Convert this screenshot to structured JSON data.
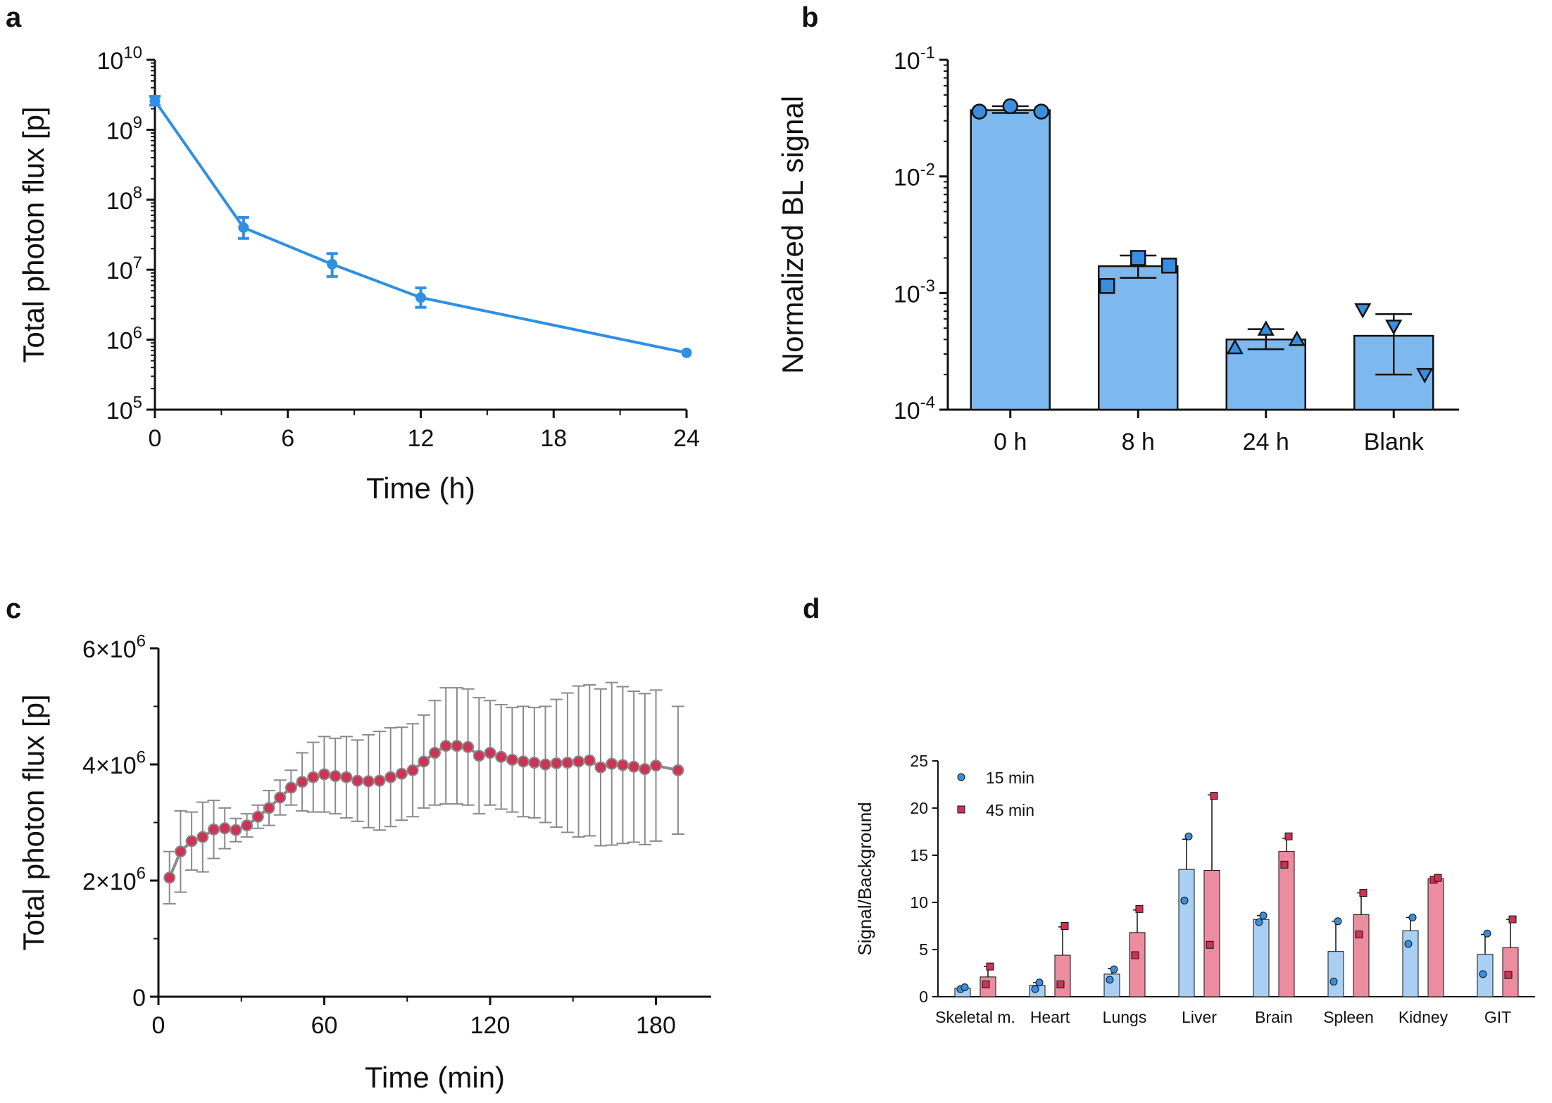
{
  "colors": {
    "blue_line": "#2f8fe3",
    "blue_bar": "#7db8ee",
    "blue_marker": "#3a8ee0",
    "red_marker": "#cc3355",
    "red_bar": "#ec8d9f",
    "light_blue_bar": "#a9d0f3",
    "gray": "#8a8a8a",
    "axis": "#111111"
  },
  "chart_data": [
    {
      "panel": "a",
      "type": "line",
      "title": "",
      "xlabel": "Time (h)",
      "ylabel": "Total photon flux [p]",
      "xlim": [
        0,
        24
      ],
      "x_ticks": [
        "0",
        "6",
        "12",
        "18",
        "24"
      ],
      "y_scale": "log",
      "y_ticks": [
        {
          "base": "10",
          "exp": "5"
        },
        {
          "base": "10",
          "exp": "6"
        },
        {
          "base": "10",
          "exp": "7"
        },
        {
          "base": "10",
          "exp": "8"
        },
        {
          "base": "10",
          "exp": "9"
        },
        {
          "base": "10",
          "exp": "10"
        }
      ],
      "ylim_log10": [
        5,
        10
      ],
      "series": [
        {
          "name": "Total photon flux",
          "x": [
            0,
            4,
            8,
            12,
            24
          ],
          "y": [
            2600000000,
            40000000,
            12000000,
            4000000,
            650000
          ],
          "err_low": [
            2250000000,
            28000000,
            8000000,
            2900000,
            650000
          ],
          "err_high": [
            3000000000,
            56000000,
            17000000,
            5500000,
            650000
          ]
        }
      ]
    },
    {
      "panel": "b",
      "type": "bar",
      "title": "",
      "xlabel": "",
      "ylabel": "Normalized BL signal",
      "y_scale": "log",
      "categories": [
        "0 h",
        "8 h",
        "24 h",
        "Blank"
      ],
      "values": [
        0.037,
        0.0017,
        0.0004,
        0.00043
      ],
      "err_high": [
        0.04,
        0.0021,
        0.00049,
        0.00066
      ],
      "err_low": [
        0.035,
        0.00135,
        0.00033,
        0.0002
      ],
      "points": [
        [
          0.036,
          0.04,
          0.036
        ],
        [
          0.00115,
          0.002,
          0.00172
        ],
        [
          0.00034,
          0.00049,
          0.0004
        ],
        [
          0.00072,
          0.00052,
          0.0002
        ]
      ],
      "markers": [
        "circle",
        "square",
        "triangle-up",
        "triangle-down"
      ],
      "y_ticks": [
        {
          "base": "10",
          "exp": "-4"
        },
        {
          "base": "10",
          "exp": "-3"
        },
        {
          "base": "10",
          "exp": "-2"
        },
        {
          "base": "10",
          "exp": "-1"
        }
      ],
      "ylim_log10": [
        -4,
        -1
      ]
    },
    {
      "panel": "c",
      "type": "line",
      "title": "",
      "xlabel": "Time (min)",
      "ylabel": "Total photon flux [p]",
      "xlim": [
        0,
        200
      ],
      "x_ticks": [
        "0",
        "60",
        "120",
        "180"
      ],
      "ylim": [
        0,
        6000000
      ],
      "y_ticks": [
        {
          "base": "0",
          "exp": ""
        },
        {
          "base": "2×10",
          "exp": "6"
        },
        {
          "base": "4×10",
          "exp": "6"
        },
        {
          "base": "6×10",
          "exp": "6"
        }
      ],
      "series": [
        {
          "name": "Total photon flux",
          "x": [
            4,
            8,
            12,
            16,
            20,
            24,
            28,
            32,
            36,
            40,
            44,
            48,
            52,
            56,
            60,
            64,
            68,
            72,
            76,
            80,
            84,
            88,
            92,
            96,
            100,
            104,
            108,
            112,
            116,
            120,
            124,
            128,
            132,
            136,
            140,
            144,
            148,
            152,
            156,
            160,
            164,
            168,
            172,
            176,
            180,
            188
          ],
          "y": [
            2050000,
            2500000,
            2680000,
            2750000,
            2880000,
            2900000,
            2870000,
            2950000,
            3100000,
            3250000,
            3430000,
            3600000,
            3700000,
            3780000,
            3830000,
            3800000,
            3780000,
            3720000,
            3710000,
            3720000,
            3780000,
            3840000,
            3900000,
            4050000,
            4200000,
            4320000,
            4320000,
            4300000,
            4150000,
            4200000,
            4130000,
            4080000,
            4050000,
            4030000,
            4000000,
            4020000,
            4030000,
            4050000,
            4070000,
            3950000,
            4010000,
            3990000,
            3960000,
            3920000,
            3980000,
            3900000
          ],
          "err": [
            450000,
            700000,
            500000,
            600000,
            500000,
            350000,
            200000,
            200000,
            200000,
            300000,
            300000,
            300000,
            500000,
            600000,
            650000,
            650000,
            700000,
            700000,
            800000,
            850000,
            850000,
            800000,
            800000,
            800000,
            900000,
            1000000,
            1000000,
            1000000,
            1000000,
            900000,
            900000,
            900000,
            950000,
            950000,
            1000000,
            1100000,
            1200000,
            1300000,
            1300000,
            1350000,
            1400000,
            1350000,
            1300000,
            1300000,
            1300000,
            1100000
          ]
        }
      ]
    },
    {
      "panel": "d",
      "type": "bar",
      "title": "",
      "xlabel": "",
      "ylabel": "Signal/Background",
      "categories": [
        "Skeletal m.",
        "Heart",
        "Lungs",
        "Liver",
        "Brain",
        "Spleen",
        "Kidney",
        "GIT"
      ],
      "ylim": [
        0,
        25
      ],
      "y_ticks": [
        "0",
        "5",
        "10",
        "15",
        "20",
        "25"
      ],
      "legend": {
        "placement": "top-left"
      },
      "series": [
        {
          "name": "15 min",
          "values": [
            0.9,
            1.2,
            2.4,
            13.5,
            8.2,
            4.8,
            7.0,
            4.5
          ],
          "err": [
            0.1,
            0.3,
            0.6,
            3.2,
            0.4,
            3.2,
            1.4,
            2.1
          ],
          "points": [
            [
              0.8,
              1.0
            ],
            [
              0.8,
              1.5
            ],
            [
              1.8,
              2.9
            ],
            [
              10.2,
              17.0
            ],
            [
              7.9,
              8.6
            ],
            [
              1.6,
              8.0
            ],
            [
              5.6,
              8.4
            ],
            [
              2.4,
              6.7
            ]
          ]
        },
        {
          "name": "45 min",
          "values": [
            2.1,
            4.4,
            6.8,
            13.4,
            15.4,
            8.7,
            12.5,
            5.2
          ],
          "err": [
            1.1,
            3.0,
            2.4,
            8.0,
            1.4,
            2.3,
            0.2,
            3.0
          ],
          "points": [
            [
              1.3,
              3.2
            ],
            [
              1.3,
              7.5
            ],
            [
              4.4,
              9.3
            ],
            [
              5.5,
              21.3
            ],
            [
              14.0,
              17.0
            ],
            [
              6.6,
              11.0
            ],
            [
              12.4,
              12.6
            ],
            [
              2.3,
              8.2
            ]
          ]
        }
      ]
    }
  ],
  "panel_labels": {
    "a": "a",
    "b": "b",
    "c": "c",
    "d": "d"
  }
}
